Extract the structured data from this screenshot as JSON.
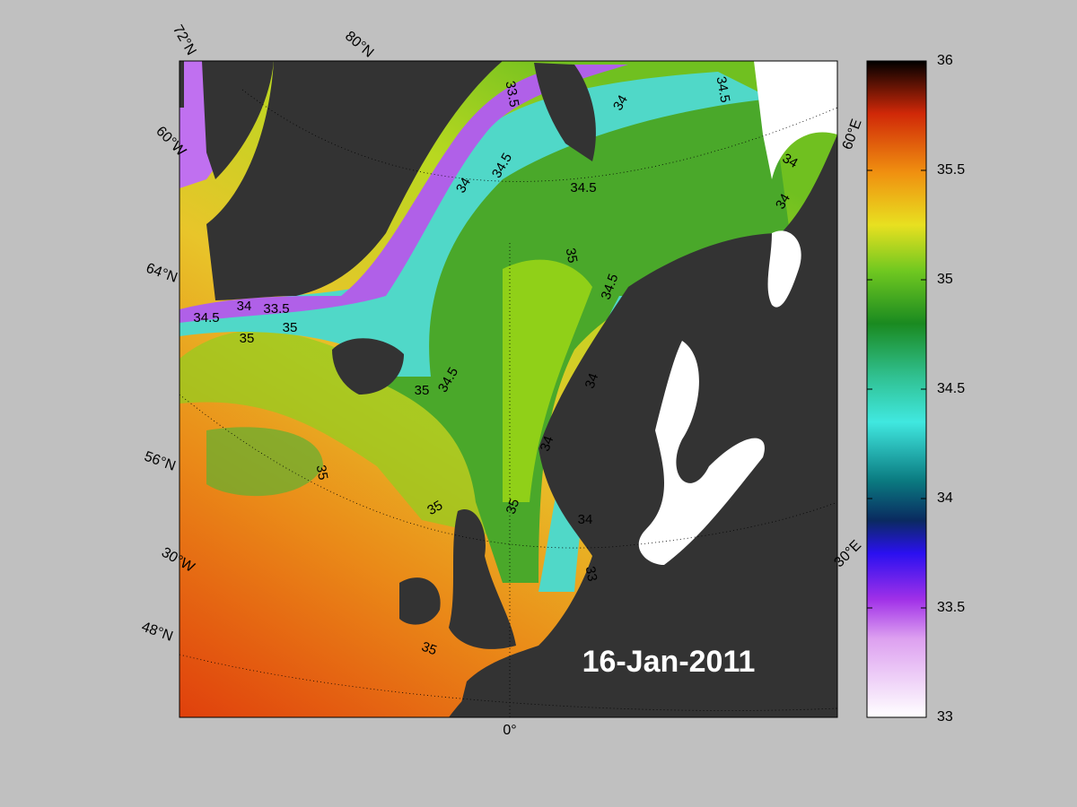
{
  "map": {
    "date": "16-Jan-2011",
    "graticule_labels": [
      "72°N",
      "80°N",
      "60°W",
      "64°N",
      "56°N",
      "30°W",
      "48°N",
      "0°",
      "30°E",
      "60°E"
    ],
    "contour_labels": [
      "34.5",
      "33.5",
      "34",
      "34.5",
      "34",
      "34.5",
      "34",
      "34",
      "35",
      "34.5",
      "34.5",
      "34",
      "33.5",
      "35",
      "35",
      "35",
      "34.5",
      "34",
      "34",
      "35",
      "35",
      "35",
      "34",
      "33",
      "35"
    ]
  },
  "colorbar": {
    "range": [
      33,
      36
    ],
    "ticks": [
      33,
      33.5,
      34,
      34.5,
      35,
      35.5,
      36
    ]
  }
}
